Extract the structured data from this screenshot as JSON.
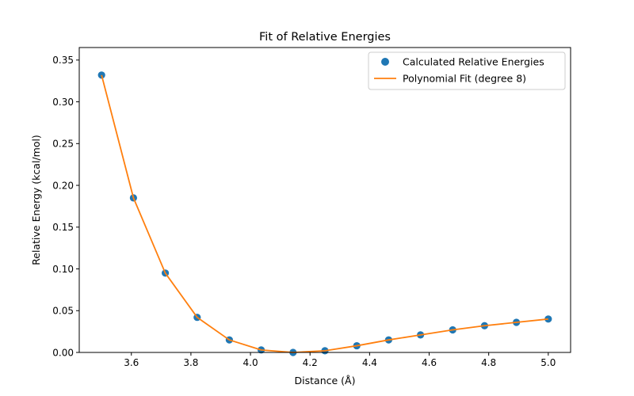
{
  "chart_data": {
    "type": "scatter",
    "title": "Fit of Relative Energies",
    "xlabel": "Distance (Å)",
    "ylabel": "Relative Energy (kcal/mol)",
    "xlim": [
      3.425,
      5.075
    ],
    "ylim": [
      0.0,
      0.365
    ],
    "xticks": [
      3.6,
      3.8,
      4.0,
      4.2,
      4.4,
      4.6,
      4.8,
      5.0
    ],
    "xtick_labels": [
      "3.6",
      "3.8",
      "4.0",
      "4.2",
      "4.4",
      "4.6",
      "4.8",
      "5.0"
    ],
    "yticks": [
      0.0,
      0.05,
      0.1,
      0.15,
      0.2,
      0.25,
      0.3,
      0.35
    ],
    "ytick_labels": [
      "0.00",
      "0.05",
      "0.10",
      "0.15",
      "0.20",
      "0.25",
      "0.30",
      "0.35"
    ],
    "grid": false,
    "legend_position": "top-right",
    "series": [
      {
        "name": "Calculated Relative Energies",
        "kind": "scatter",
        "color": "#1f77b4",
        "x": [
          3.5,
          3.607,
          3.714,
          3.821,
          3.929,
          4.036,
          4.143,
          4.25,
          4.357,
          4.464,
          4.571,
          4.679,
          4.786,
          4.893,
          5.0
        ],
        "y": [
          0.332,
          0.185,
          0.095,
          0.042,
          0.015,
          0.003,
          0.0,
          0.002,
          0.008,
          0.015,
          0.021,
          0.027,
          0.032,
          0.036,
          0.04
        ]
      },
      {
        "name": "Polynomial Fit (degree 8)",
        "kind": "line",
        "color": "#ff7f0e",
        "x": [
          3.5,
          3.607,
          3.714,
          3.821,
          3.929,
          4.036,
          4.143,
          4.25,
          4.357,
          4.464,
          4.571,
          4.679,
          4.786,
          4.893,
          5.0
        ],
        "y": [
          0.332,
          0.185,
          0.095,
          0.042,
          0.015,
          0.003,
          0.0,
          0.002,
          0.008,
          0.015,
          0.021,
          0.027,
          0.032,
          0.036,
          0.04
        ]
      }
    ]
  }
}
